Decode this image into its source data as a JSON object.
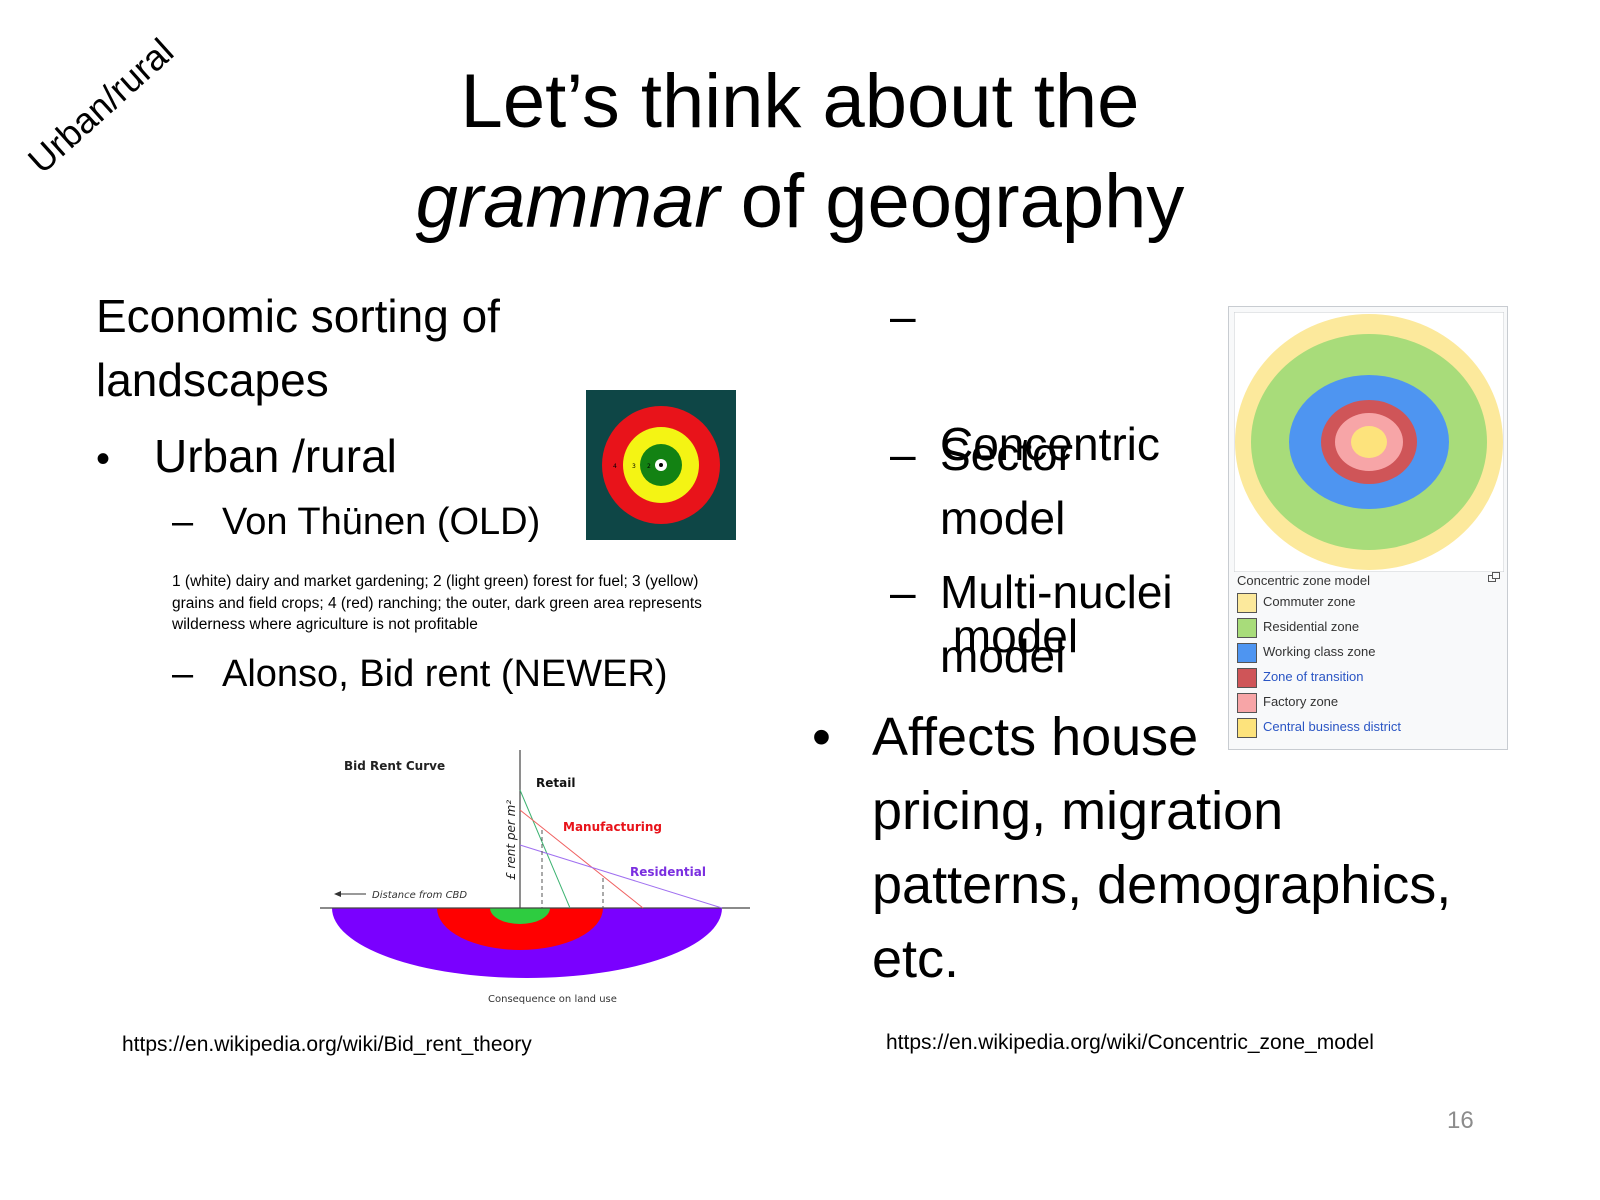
{
  "slide": {
    "title_line1": "Let’s think about the",
    "title_line2_em": "grammar",
    "title_line2_rest": " of geography",
    "corner_label": "Urban/rural",
    "page_number": "16"
  },
  "left": {
    "heading": "Economic sorting of landscapes",
    "heading_l1": "Economic sorting of",
    "heading_l2": "landscapes",
    "bullet_symbol": "•",
    "dash_symbol": "–",
    "bullet1": "Urban /rural",
    "sub1": "Von Thünen (OLD)",
    "caption_l1": "1 (white) dairy and market gardening; 2 (light green) forest for fuel; 3 (yellow)",
    "caption_l2": "grains and field crops; 4 (red) ranching; the outer, dark green area represents",
    "caption_l3": "wilderness where agriculture is not profitable",
    "sub2": "Alonso, Bid rent (NEWER)",
    "url": "https://en.wikipedia.org/wiki/Bid_rent_theory"
  },
  "vonthunen": {
    "labels": [
      "4",
      "3",
      "2"
    ],
    "colors": {
      "background": "#0e4646",
      "red": "#e8131a",
      "yellow": "#f4f414",
      "green": "#138213",
      "white": "#ffffff"
    }
  },
  "bidrent": {
    "title": "Bid Rent Curve",
    "ylabel": "£ rent per m²",
    "xlabel": "Distance from CBD",
    "series": [
      {
        "name": "Retail",
        "color": "#111111"
      },
      {
        "name": "Manufacturing",
        "color": "#e8131a"
      },
      {
        "name": "Residential",
        "color": "#7b2fe0"
      }
    ],
    "consequence": "Consequence on land use",
    "colors": {
      "retail_zone": "#2ecc40",
      "manufacturing_zone": "#ff0000",
      "residential_zone": "#7a00ff"
    }
  },
  "right": {
    "dash_symbol": "–",
    "bullet_symbol": "•",
    "items": [
      {
        "l1": "Concentric",
        "l2": " model"
      },
      {
        "l1": "Sector",
        "l2": "model"
      },
      {
        "l1": "Multi-nuclei",
        "l2": "model"
      }
    ],
    "effect_l1": "Affects house",
    "effect_l2": "pricing, migration",
    "effect_l3": "patterns, demographics,",
    "effect_l4": "etc.",
    "url": "https://en.wikipedia.org/wiki/Concentric_zone_model"
  },
  "concentric": {
    "caption": "Concentric zone model",
    "expand_icon": "expand-icon",
    "legend": [
      {
        "label": "Commuter zone",
        "color": "#fce99c",
        "link": false
      },
      {
        "label": "Residential zone",
        "color": "#a8dc7a",
        "link": false
      },
      {
        "label": "Working class zone",
        "color": "#4e95f1",
        "link": false
      },
      {
        "label": "Zone of transition",
        "color": "#cf5558",
        "link": true
      },
      {
        "label": "Factory zone",
        "color": "#f7a5a7",
        "link": false
      },
      {
        "label": "Central business district",
        "color": "#fde37c",
        "link": true
      }
    ]
  }
}
